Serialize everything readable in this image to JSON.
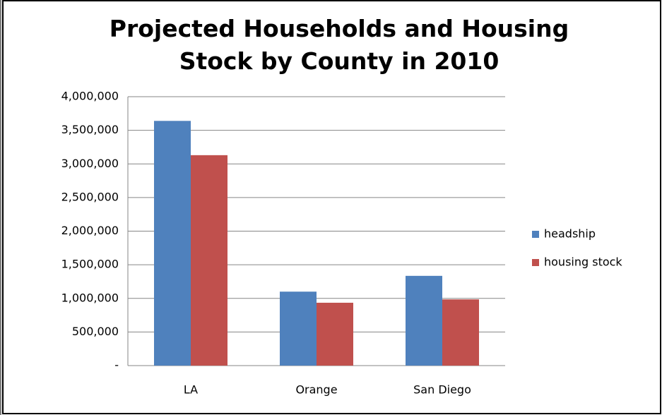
{
  "chart_data": {
    "type": "bar",
    "title": "Projected Households and Housing Stock by County in 2010",
    "categories": [
      "LA",
      "Orange",
      "San Diego"
    ],
    "series": [
      {
        "name": "headship",
        "color": "#4f81bd",
        "values": [
          3640000,
          1100000,
          1335000
        ]
      },
      {
        "name": "housing stock",
        "color": "#c0504d",
        "values": [
          3130000,
          935000,
          985000
        ]
      }
    ],
    "ylim": [
      0,
      4000000
    ],
    "yticks": [
      {
        "value": 0,
        "label": "-"
      },
      {
        "value": 500000,
        "label": "500,000"
      },
      {
        "value": 1000000,
        "label": "1,000,000"
      },
      {
        "value": 1500000,
        "label": "1,500,000"
      },
      {
        "value": 2000000,
        "label": "2,000,000"
      },
      {
        "value": 2500000,
        "label": "2,500,000"
      },
      {
        "value": 3000000,
        "label": "3,000,000"
      },
      {
        "value": 3500000,
        "label": "3,500,000"
      },
      {
        "value": 4000000,
        "label": "4,000,000"
      }
    ],
    "grid": true,
    "legend": "right"
  }
}
